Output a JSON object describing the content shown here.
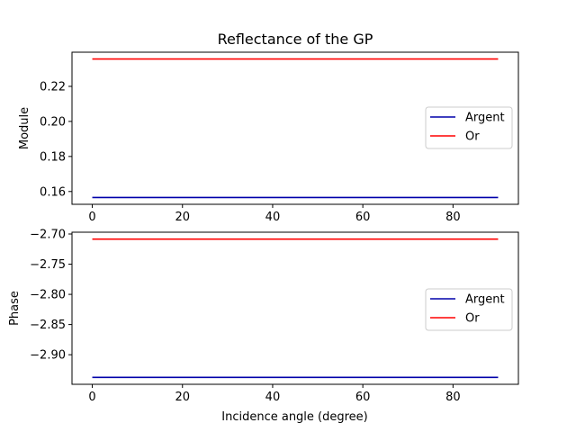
{
  "figure_title": "Reflectance of the GP",
  "chart_data": [
    {
      "type": "line",
      "title": "Reflectance of the GP",
      "xlabel": "",
      "ylabel": "Module",
      "xlim": [
        -4.5,
        94.5
      ],
      "ylim": [
        0.1527,
        0.2395
      ],
      "xticks": [
        0,
        20,
        40,
        60,
        80
      ],
      "yticks": [
        0.16,
        0.18,
        0.2,
        0.22
      ],
      "ytick_labels": [
        "0.16",
        "0.18",
        "0.20",
        "0.22"
      ],
      "grid": false,
      "legend": "center-right",
      "series": [
        {
          "name": "Argent",
          "color": "#0000aa",
          "x": [
            0,
            90
          ],
          "y": [
            0.1566,
            0.1566
          ]
        },
        {
          "name": "Or",
          "color": "#ff0000",
          "x": [
            0,
            90
          ],
          "y": [
            0.2356,
            0.2356
          ]
        }
      ]
    },
    {
      "type": "line",
      "title": "",
      "xlabel": "Incidence angle (degree)",
      "ylabel": "Phase",
      "xlim": [
        -4.5,
        94.5
      ],
      "ylim": [
        -2.949,
        -2.697
      ],
      "xticks": [
        0,
        20,
        40,
        60,
        80
      ],
      "yticks": [
        -2.9,
        -2.85,
        -2.8,
        -2.75,
        -2.7
      ],
      "ytick_labels": [
        "−2.90",
        "−2.85",
        "−2.80",
        "−2.75",
        "−2.70"
      ],
      "grid": false,
      "legend": "center-right",
      "series": [
        {
          "name": "Argent",
          "color": "#0000aa",
          "x": [
            0,
            90
          ],
          "y": [
            -2.9375,
            -2.9375
          ]
        },
        {
          "name": "Or",
          "color": "#ff0000",
          "x": [
            0,
            90
          ],
          "y": [
            -2.7085,
            -2.7085
          ]
        }
      ]
    }
  ]
}
